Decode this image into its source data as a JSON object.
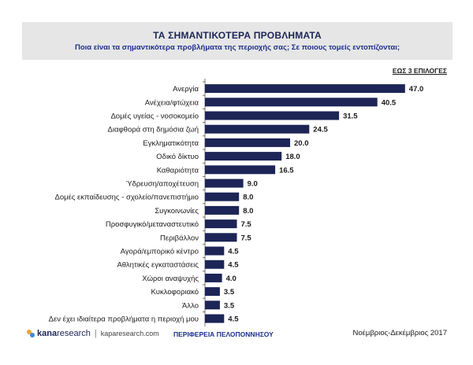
{
  "header": {
    "title": "ΤΑ ΣΗΜΑΝΤΙΚΟΤΕΡΑ ΠΡΟΒΛΗΜΑΤΑ",
    "subtitle": "Ποια είναι τα σημαντικότερα προβλήματα της περιοχής σας; Σε ποιους τομείς εντοπίζονται;",
    "note": "ΕΩΣ 3 ΕΠΙΛΟΓΕΣ"
  },
  "chart_data": {
    "type": "bar",
    "orientation": "horizontal",
    "categories": [
      "Ανεργία",
      "Ανέχεια/φτώχεια",
      "Δομές υγείας - νοσοκομείο",
      "Διαφθορά στη δημόσια ζωή",
      "Εγκληματικότητα",
      "Οδικό δίκτυο",
      "Καθαριότητα",
      "Ύδρευση/αποχέτευση",
      "Δομές εκπαίδευσης - σχολείο/πανεπιστήμιο",
      "Συγκοινωνίες",
      "Προσφυγικό/μεταναστευτικό",
      "Περιβάλλον",
      "Αγορά/εμπορικό κέντρο",
      "Αθλητικές εγκαταστάσεις",
      "Χώροι αναψυχής",
      "Κυκλοφοριακό",
      "Άλλο",
      "Δεν έχει ιδιαίτερα προβλήματα η περιοχή μου"
    ],
    "values": [
      47.0,
      40.5,
      31.5,
      24.5,
      20.0,
      18.0,
      16.5,
      9.0,
      8.0,
      8.0,
      7.5,
      7.5,
      4.5,
      4.5,
      4.0,
      3.5,
      3.5,
      4.5
    ],
    "value_labels": [
      "47.0",
      "40.5",
      "31.5",
      "24.5",
      "20.0",
      "18.0",
      "16.5",
      "9.0",
      "8.0",
      "8.0",
      "7.5",
      "7.5",
      "4.5",
      "4.5",
      "4.0",
      "3.5",
      "3.5",
      "4.5"
    ],
    "xlim": [
      0,
      50
    ],
    "grid": false,
    "bar_color": "#1c2556"
  },
  "footer": {
    "logo_kana": "kana",
    "logo_research": "research",
    "logo_separator": "|",
    "logo_url": "kaparesearch.com",
    "region": "ΠΕΡΙΦΕΡΕΙΑ ΠΕΛΟΠΟΝΝΗΣΟΥ",
    "date": "Νοέμβριος-Δεκέμβριος 2017"
  }
}
